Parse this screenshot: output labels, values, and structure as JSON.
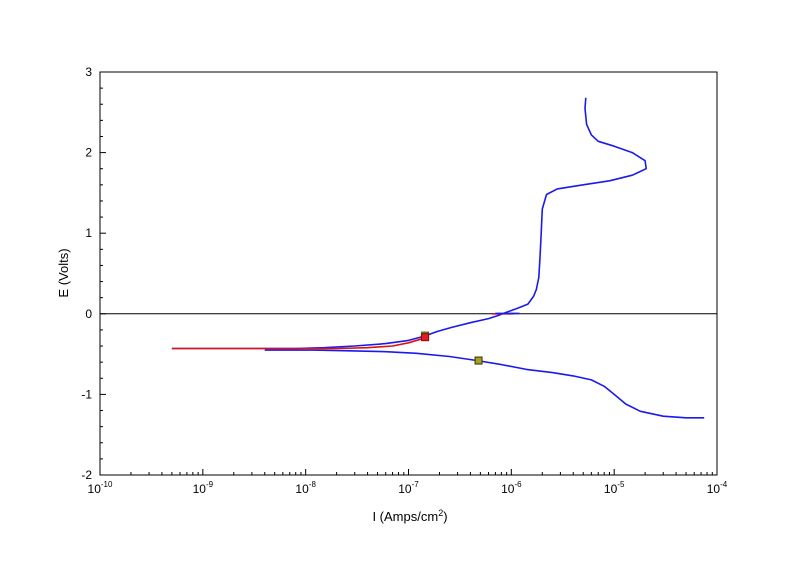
{
  "chart_data": {
    "type": "line",
    "title": "",
    "xlabel": "I (Amps/cm²)",
    "xlabel_parts": {
      "main": "I (Amps/cm",
      "sup": "2",
      "tail": ")"
    },
    "ylabel": "E (Volts)",
    "x_scale": "log",
    "xlim": [
      1e-10,
      0.0001
    ],
    "ylim": [
      -2,
      3
    ],
    "x_ticks": [
      {
        "base": "10",
        "exp": "-10"
      },
      {
        "base": "10",
        "exp": "-9"
      },
      {
        "base": "10",
        "exp": "-8"
      },
      {
        "base": "10",
        "exp": "-7"
      },
      {
        "base": "10",
        "exp": "-6"
      },
      {
        "base": "10",
        "exp": "-5"
      },
      {
        "base": "10",
        "exp": "-4"
      }
    ],
    "y_ticks": [
      "-2",
      "-1",
      "0",
      "1",
      "2",
      "3"
    ],
    "grid": false,
    "reference_line": {
      "y": 0,
      "color": "#000000"
    },
    "series": [
      {
        "color": "#1a1aee",
        "points": [
          [
            5.3e-06,
            2.68
          ],
          [
            5.2e-06,
            2.55
          ],
          [
            5.4e-06,
            2.35
          ],
          [
            6e-06,
            2.22
          ],
          [
            7e-06,
            2.14
          ],
          [
            1e-05,
            2.08
          ],
          [
            1.5e-05,
            2.0
          ],
          [
            2e-05,
            1.9
          ],
          [
            2.05e-05,
            1.8
          ],
          [
            1.5e-05,
            1.72
          ],
          [
            9e-06,
            1.65
          ],
          [
            5e-06,
            1.6
          ],
          [
            2.8e-06,
            1.55
          ],
          [
            2.2e-06,
            1.48
          ],
          [
            2e-06,
            1.3
          ],
          [
            1.95e-06,
            1.0
          ],
          [
            1.9e-06,
            0.7
          ],
          [
            1.85e-06,
            0.45
          ],
          [
            1.75e-06,
            0.3
          ],
          [
            1.65e-06,
            0.22
          ],
          [
            1.45e-06,
            0.12
          ],
          [
            1.15e-06,
            0.07
          ],
          [
            9e-07,
            0.02
          ],
          [
            7.5e-07,
            -0.02
          ],
          [
            6e-07,
            -0.06
          ],
          [
            4e-07,
            -0.11
          ],
          [
            2.6e-07,
            -0.17
          ],
          [
            1.9e-07,
            -0.22
          ],
          [
            1.4e-07,
            -0.28
          ],
          [
            1e-07,
            -0.33
          ],
          [
            6e-08,
            -0.37
          ],
          [
            3e-08,
            -0.4
          ],
          [
            1.5e-08,
            -0.42
          ],
          [
            8e-09,
            -0.43
          ],
          [
            3e-09,
            -0.43
          ],
          [
            1e-09,
            -0.43
          ],
          [
            5e-10,
            -0.43
          ]
        ]
      },
      {
        "color": "#1a1aee",
        "points": [
          [
            4e-09,
            -0.45
          ],
          [
            1.2e-08,
            -0.45
          ],
          [
            3e-08,
            -0.46
          ],
          [
            6e-08,
            -0.47
          ],
          [
            1.2e-07,
            -0.49
          ],
          [
            2.5e-07,
            -0.53
          ],
          [
            4.6e-07,
            -0.58
          ],
          [
            8e-07,
            -0.63
          ],
          [
            1.4e-06,
            -0.69
          ],
          [
            2.5e-06,
            -0.73
          ],
          [
            4e-06,
            -0.77
          ],
          [
            6e-06,
            -0.82
          ],
          [
            8e-06,
            -0.9
          ],
          [
            1e-05,
            -1.0
          ],
          [
            1.3e-05,
            -1.12
          ],
          [
            1.8e-05,
            -1.21
          ],
          [
            3e-05,
            -1.27
          ],
          [
            5e-05,
            -1.29
          ],
          [
            7.5e-05,
            -1.29
          ]
        ]
      },
      {
        "color": "#e01010",
        "points": [
          [
            5e-10,
            -0.43
          ],
          [
            1e-09,
            -0.43
          ],
          [
            3e-09,
            -0.43
          ],
          [
            8e-09,
            -0.43
          ],
          [
            2e-08,
            -0.43
          ],
          [
            4e-08,
            -0.42
          ],
          [
            7e-08,
            -0.4
          ],
          [
            1e-07,
            -0.36
          ],
          [
            1.35e-07,
            -0.31
          ],
          [
            1.5e-07,
            -0.27
          ]
        ]
      },
      {
        "color": "#e01010",
        "points": [
          [
            6.5e-07,
            0.0
          ],
          [
            8e-07,
            0.0
          ],
          [
            1.05e-06,
            0.0
          ]
        ]
      },
      {
        "color": "#1a1aee",
        "points": [
          [
            7e-07,
            0.005
          ],
          [
            1.2e-06,
            0.005
          ]
        ]
      }
    ],
    "markers": [
      {
        "x": 1.45e-07,
        "y": -0.27,
        "shape": "square",
        "fill": "#33bb33",
        "stroke": "#556600"
      },
      {
        "x": 1.45e-07,
        "y": -0.29,
        "shape": "square",
        "fill": "#e02020",
        "stroke": "#990000"
      },
      {
        "x": 4.8e-07,
        "y": -0.58,
        "shape": "square",
        "fill": "#a8a020",
        "stroke": "#333300"
      }
    ]
  }
}
